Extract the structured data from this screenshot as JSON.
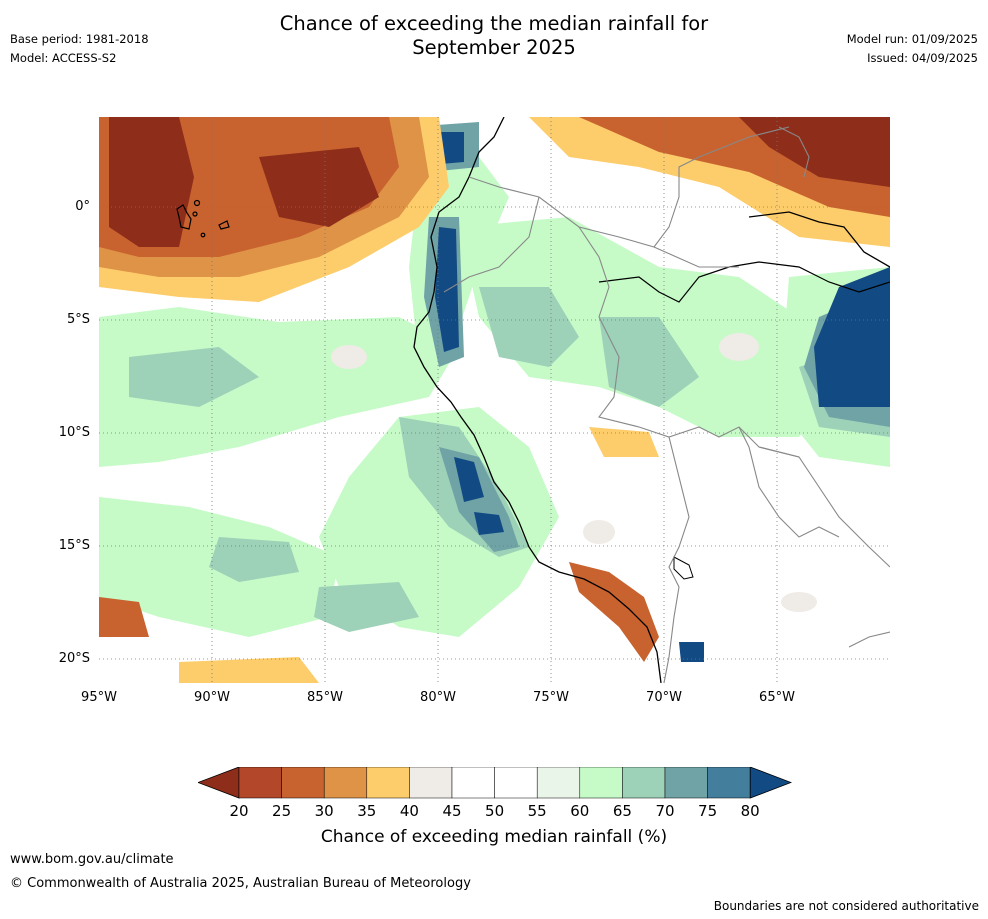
{
  "header": {
    "title_line1": "Chance of exceeding the median rainfall for",
    "title_line2": "September 2025",
    "base_period": "Base period: 1981-2018",
    "model": "Model: ACCESS-S2",
    "model_run": "Model run: 01/09/2025",
    "issued": "Issued: 04/09/2025"
  },
  "map": {
    "lon_range": [
      -95,
      -60
    ],
    "lat_range": [
      -21,
      4
    ],
    "lon_ticks": [
      "95°W",
      "90°W",
      "85°W",
      "80°W",
      "75°W",
      "70°W",
      "65°W"
    ],
    "lat_ticks": [
      "0°",
      "5°S",
      "10°S",
      "15°S",
      "20°S"
    ],
    "gridlines": true
  },
  "colorbar": {
    "levels": [
      "20",
      "25",
      "30",
      "35",
      "40",
      "45",
      "50",
      "55",
      "60",
      "65",
      "70",
      "75",
      "80"
    ],
    "colors": [
      "#8e2d1a",
      "#b3472a",
      "#c8632f",
      "#de9346",
      "#fdcc6b",
      "#efebe6",
      "#ffffff",
      "#ffffff",
      "#eaf5ea",
      "#c6fbc8",
      "#9dd1b8",
      "#6fa3a6",
      "#437f9c",
      "#124a84"
    ],
    "title": "Chance of exceeding median rainfall (%)"
  },
  "footer": {
    "website": "www.bom.gov.au/climate",
    "copyright": "© Commonwealth of Australia 2025, Australian Bureau of Meteorology",
    "disclaimer": "Boundaries are not considered authoritative"
  }
}
